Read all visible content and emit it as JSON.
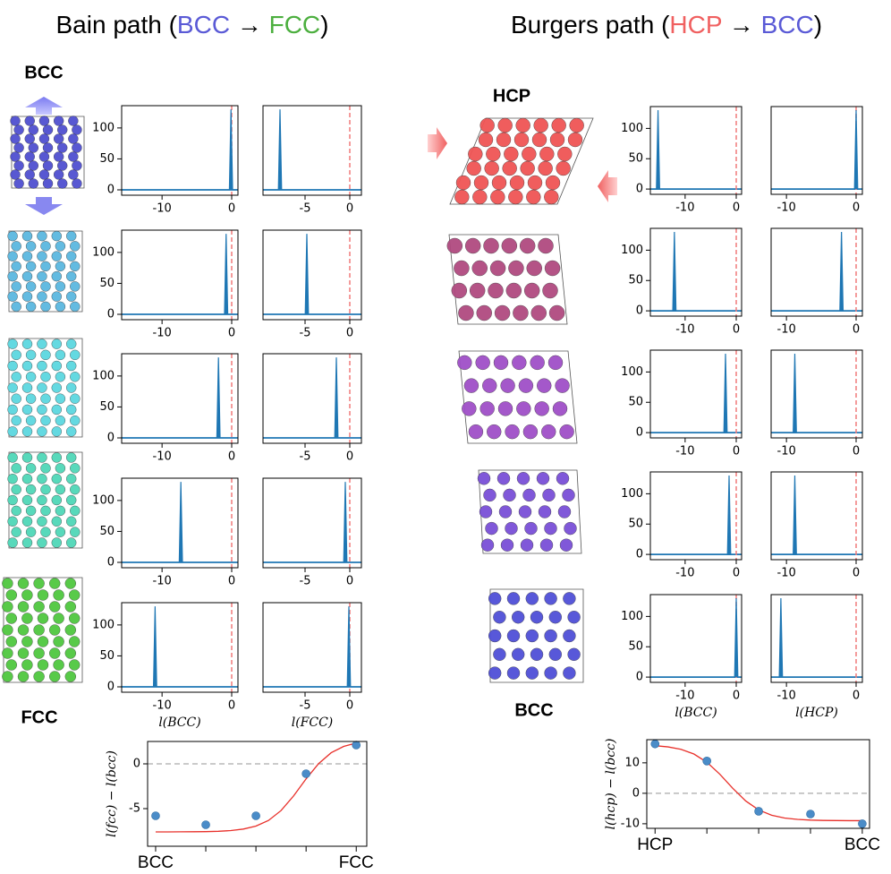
{
  "titles": [
    {
      "parts": [
        {
          "text": "Bain path (",
          "color": "#000000"
        },
        {
          "text": "BCC",
          "color": "#5a5ad6"
        },
        {
          "text": " → ",
          "color": "#000000"
        },
        {
          "text": "FCC",
          "color": "#4caf3f"
        },
        {
          "text": ")",
          "color": "#000000"
        }
      ]
    },
    {
      "parts": [
        {
          "text": "Burgers path (",
          "color": "#000000"
        },
        {
          "text": "HCP",
          "color": "#f06060"
        },
        {
          "text": " → ",
          "color": "#000000"
        },
        {
          "text": "BCC",
          "color": "#5a5ad6"
        },
        {
          "text": ")",
          "color": "#000000"
        }
      ]
    }
  ],
  "structure_labels": [
    {
      "text": "BCC",
      "color": "#6a6ae0"
    },
    {
      "text": "FCC",
      "color": "#4caf3f"
    },
    {
      "text": "HCP",
      "color": "#f05a5a"
    },
    {
      "text": "BCC",
      "color": "#6a6ae0"
    }
  ],
  "chart_data": [
    {
      "type": "spike",
      "x": [
        -0.1
      ],
      "values": [
        130
      ],
      "xlim": [
        -15.8,
        0.9
      ],
      "ylim": [
        -8.7,
        136
      ],
      "xticks": [
        -10,
        0
      ],
      "yticks": [
        0,
        50,
        100
      ],
      "vline": 0,
      "color": "#1f77b4",
      "vline_color": "#f07a7a"
    },
    {
      "type": "spike",
      "x": [
        -7.8
      ],
      "values": [
        130
      ],
      "xlim": [
        -9.7,
        1.3
      ],
      "ylim": [
        -8.7,
        136
      ],
      "xticks": [
        -5,
        0
      ],
      "vline": 0,
      "color": "#1f77b4",
      "vline_color": "#f07a7a"
    },
    {
      "type": "spike",
      "x": [
        -0.8
      ],
      "values": [
        130
      ],
      "xlim": [
        -15.8,
        0.9
      ],
      "ylim": [
        -8.7,
        136
      ],
      "xticks": [
        -10,
        0
      ],
      "yticks": [
        0,
        50,
        100
      ],
      "vline": 0,
      "color": "#1f77b4",
      "vline_color": "#f07a7a"
    },
    {
      "type": "spike",
      "x": [
        -4.8
      ],
      "values": [
        130
      ],
      "xlim": [
        -9.7,
        1.3
      ],
      "ylim": [
        -8.7,
        136
      ],
      "xticks": [
        -5,
        0
      ],
      "vline": 0,
      "color": "#1f77b4",
      "vline_color": "#f07a7a"
    },
    {
      "type": "spike",
      "x": [
        -1.9
      ],
      "values": [
        130
      ],
      "xlim": [
        -15.8,
        0.9
      ],
      "ylim": [
        -8.7,
        136
      ],
      "xticks": [
        -10,
        0
      ],
      "yticks": [
        0,
        50,
        100
      ],
      "vline": 0,
      "color": "#1f77b4",
      "vline_color": "#f07a7a"
    },
    {
      "type": "spike",
      "x": [
        -1.5
      ],
      "values": [
        130
      ],
      "xlim": [
        -9.7,
        1.3
      ],
      "ylim": [
        -8.7,
        136
      ],
      "xticks": [
        -5,
        0
      ],
      "vline": 0,
      "color": "#1f77b4",
      "vline_color": "#f07a7a"
    },
    {
      "type": "spike",
      "x": [
        -7.3
      ],
      "values": [
        130
      ],
      "xlim": [
        -15.8,
        0.9
      ],
      "ylim": [
        -8.7,
        136
      ],
      "xticks": [
        -10,
        0
      ],
      "yticks": [
        0,
        50,
        100
      ],
      "vline": 0,
      "color": "#1f77b4",
      "vline_color": "#f07a7a"
    },
    {
      "type": "spike",
      "x": [
        -0.5
      ],
      "values": [
        130
      ],
      "xlim": [
        -9.7,
        1.3
      ],
      "ylim": [
        -8.7,
        136
      ],
      "xticks": [
        -5,
        0
      ],
      "vline": 0,
      "color": "#1f77b4",
      "vline_color": "#f07a7a"
    },
    {
      "type": "spike",
      "x": [
        -11
      ],
      "values": [
        130
      ],
      "xlim": [
        -15.8,
        0.9
      ],
      "ylim": [
        -8.7,
        136
      ],
      "xticks": [
        -10,
        0
      ],
      "yticks": [
        0,
        50,
        100
      ],
      "vline": 0,
      "color": "#1f77b4",
      "vline_color": "#f07a7a",
      "xlabel": "l(BCC)"
    },
    {
      "type": "spike",
      "x": [
        -0.1
      ],
      "values": [
        130
      ],
      "xlim": [
        -9.7,
        1.3
      ],
      "ylim": [
        -8.7,
        136
      ],
      "xticks": [
        -5,
        0
      ],
      "vline": 0,
      "color": "#1f77b4",
      "vline_color": "#f07a7a",
      "xlabel": "l(FCC)"
    },
    {
      "type": "spike",
      "x": [
        -15.3
      ],
      "values": [
        130
      ],
      "xlim": [
        -16.8,
        1.05
      ],
      "ylim": [
        -8.7,
        136
      ],
      "xticks": [
        -10,
        0
      ],
      "yticks": [
        0,
        50,
        100
      ],
      "vline": 0,
      "color": "#1f77b4",
      "vline_color": "#f07a7a"
    },
    {
      "type": "spike",
      "x": [
        0
      ],
      "values": [
        130
      ],
      "xlim": [
        -12.2,
        0.9
      ],
      "ylim": [
        -8.7,
        136
      ],
      "xticks": [
        -10,
        0
      ],
      "vline": 0,
      "color": "#1f77b4",
      "vline_color": "#f07a7a"
    },
    {
      "type": "spike",
      "x": [
        -12.1
      ],
      "values": [
        130
      ],
      "xlim": [
        -16.8,
        1.05
      ],
      "ylim": [
        -8.7,
        136
      ],
      "xticks": [
        -10,
        0
      ],
      "yticks": [
        0,
        50,
        100
      ],
      "vline": 0,
      "color": "#1f77b4",
      "vline_color": "#f07a7a"
    },
    {
      "type": "spike",
      "x": [
        -2.1
      ],
      "values": [
        130
      ],
      "xlim": [
        -12.2,
        0.9
      ],
      "ylim": [
        -8.7,
        136
      ],
      "xticks": [
        -10,
        0
      ],
      "vline": 0,
      "color": "#1f77b4",
      "vline_color": "#f07a7a"
    },
    {
      "type": "spike",
      "x": [
        -2.1
      ],
      "values": [
        130
      ],
      "xlim": [
        -16.8,
        1.05
      ],
      "ylim": [
        -8.7,
        136
      ],
      "xticks": [
        -10,
        0
      ],
      "yticks": [
        0,
        50,
        100
      ],
      "vline": 0,
      "color": "#1f77b4",
      "vline_color": "#f07a7a"
    },
    {
      "type": "spike",
      "x": [
        -8.8
      ],
      "values": [
        130
      ],
      "xlim": [
        -12.2,
        0.9
      ],
      "ylim": [
        -8.7,
        136
      ],
      "xticks": [
        -10,
        0
      ],
      "vline": 0,
      "color": "#1f77b4",
      "vline_color": "#f07a7a"
    },
    {
      "type": "spike",
      "x": [
        -1.4
      ],
      "values": [
        130
      ],
      "xlim": [
        -16.8,
        1.05
      ],
      "ylim": [
        -8.7,
        136
      ],
      "xticks": [
        -10,
        0
      ],
      "yticks": [
        0,
        50,
        100
      ],
      "vline": 0,
      "color": "#1f77b4",
      "vline_color": "#f07a7a"
    },
    {
      "type": "spike",
      "x": [
        -8.8
      ],
      "values": [
        130
      ],
      "xlim": [
        -12.2,
        0.9
      ],
      "ylim": [
        -8.7,
        136
      ],
      "xticks": [
        -10,
        0
      ],
      "vline": 0,
      "color": "#1f77b4",
      "vline_color": "#f07a7a"
    },
    {
      "type": "spike",
      "x": [
        0
      ],
      "values": [
        130
      ],
      "xlim": [
        -16.8,
        1.05
      ],
      "ylim": [
        -8.7,
        136
      ],
      "xticks": [
        -10,
        0
      ],
      "yticks": [
        0,
        50,
        100
      ],
      "vline": 0,
      "color": "#1f77b4",
      "vline_color": "#f07a7a",
      "xlabel": "l(BCC)"
    },
    {
      "type": "spike",
      "x": [
        -10.8
      ],
      "values": [
        130
      ],
      "xlim": [
        -12.2,
        0.9
      ],
      "ylim": [
        -8.7,
        136
      ],
      "xticks": [
        -10,
        0
      ],
      "vline": 0,
      "color": "#1f77b4",
      "vline_color": "#f07a7a",
      "xlabel": "l(HCP)"
    },
    {
      "type": "scatter",
      "categories": [
        "BCC",
        null,
        null,
        null,
        "FCC"
      ],
      "category_colors": [
        "#5a5ad6",
        null,
        null,
        null,
        "#4caf3f"
      ],
      "values": [
        -5.8,
        -6.8,
        -5.8,
        -1.1,
        2.1
      ],
      "color": "#4a8cc8",
      "xlim": [
        -0.16,
        4.21
      ],
      "ylim": [
        -9.2,
        2.5
      ],
      "yticks": [
        -5,
        0
      ],
      "hline": 0,
      "ylabel": "l(fcc) − l(bcc)",
      "fit": {
        "color": "#e8302a",
        "x": [
          0,
          0.25,
          0.5,
          0.75,
          1,
          1.25,
          1.5,
          1.75,
          2,
          2.25,
          2.5,
          2.75,
          3,
          3.25,
          3.5,
          3.75,
          4
        ],
        "values": [
          -7.6,
          -7.6,
          -7.59,
          -7.58,
          -7.57,
          -7.53,
          -7.45,
          -7.28,
          -6.95,
          -6.32,
          -5.22,
          -3.59,
          -1.68,
          0.03,
          1.24,
          1.95,
          2.33
        ]
      }
    },
    {
      "type": "scatter",
      "categories": [
        "HCP",
        null,
        null,
        null,
        "BCC"
      ],
      "category_colors": [
        "#f06060",
        null,
        null,
        null,
        "#5a5ad6"
      ],
      "values": [
        16.2,
        10.6,
        -5.9,
        -6.8,
        -10
      ],
      "color": "#4a8cc8",
      "xlim": [
        -0.16,
        4.14
      ],
      "ylim": [
        -11.5,
        17.6
      ],
      "yticks": [
        -10,
        0,
        10
      ],
      "hline": 0,
      "ylabel": "l(hcp) − l(bcc)",
      "fit": {
        "color": "#e8302a",
        "x": [
          0,
          0.25,
          0.5,
          0.75,
          1,
          1.25,
          1.5,
          1.75,
          2,
          2.25,
          2.5,
          2.75,
          3,
          3.25,
          3.5,
          3.75,
          4
        ],
        "values": [
          15.63,
          15.23,
          14.43,
          12.89,
          10.21,
          6.27,
          1.64,
          -2.52,
          -5.46,
          -7.19,
          -8.11,
          -8.57,
          -8.8,
          -8.91,
          -8.95,
          -8.98,
          -8.99
        ]
      }
    }
  ]
}
